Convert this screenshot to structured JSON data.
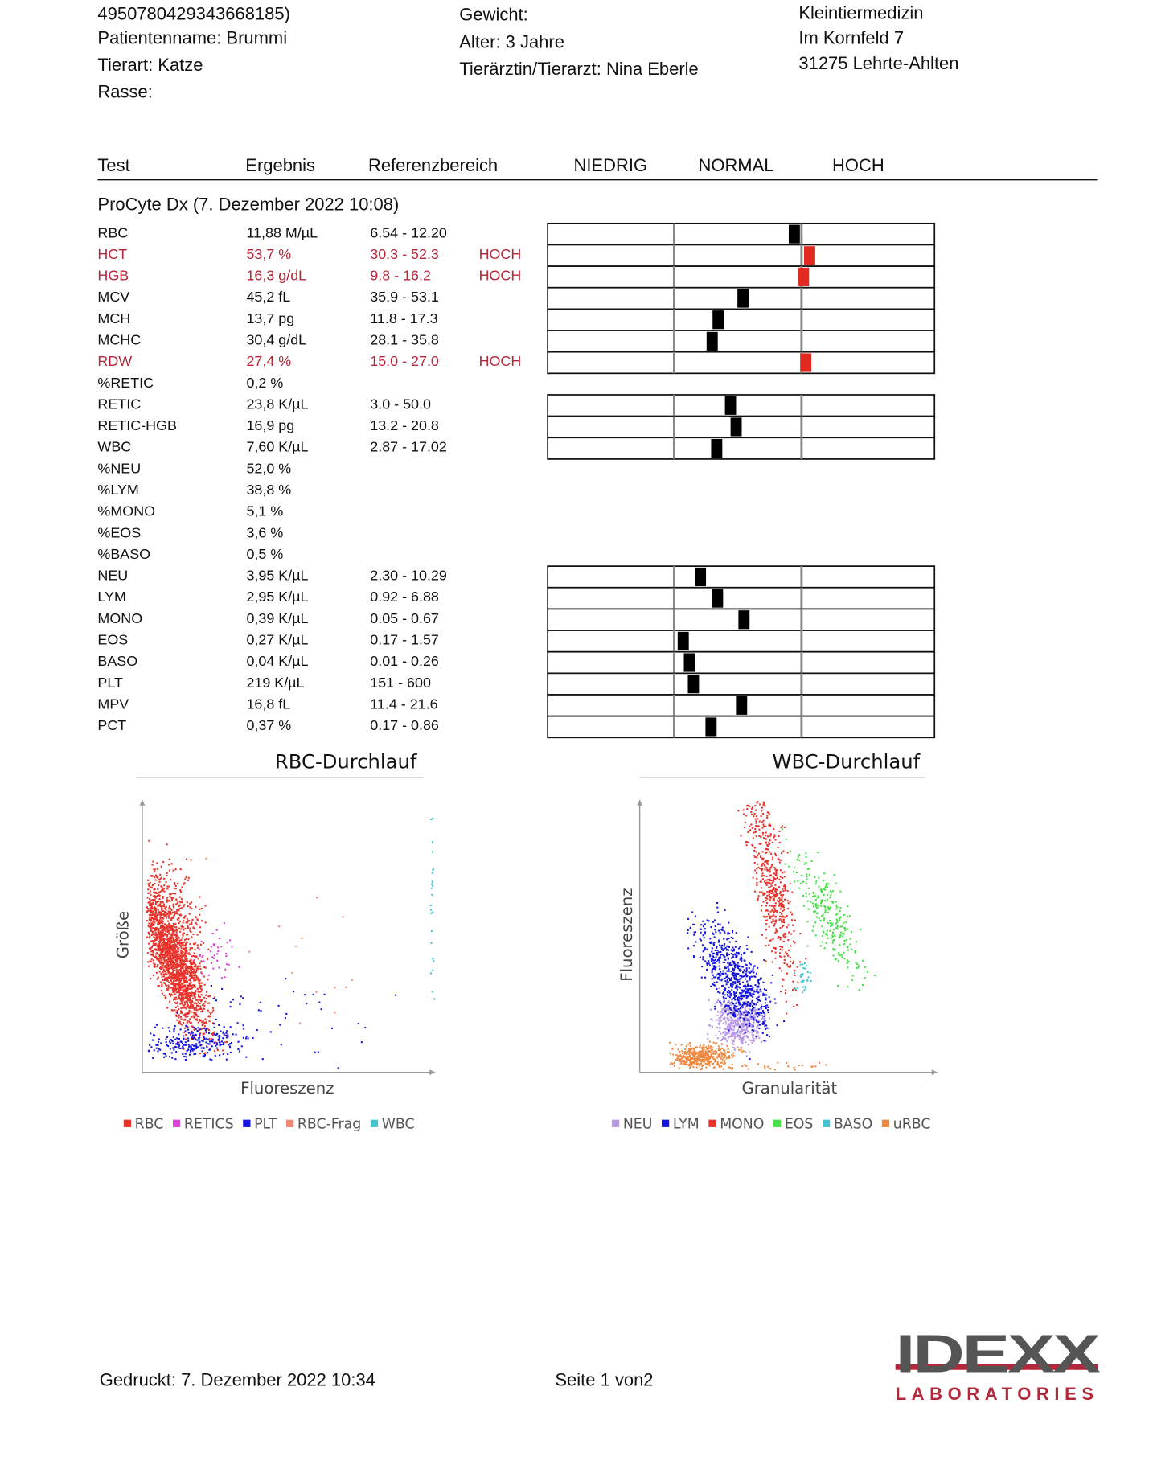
{
  "header": {
    "left": [
      "4950780429343668185)",
      "Patientenname: Brummi",
      "Tierart: Katze",
      "Rasse:"
    ],
    "middle": [
      "Gewicht:",
      "Alter: 3 Jahre",
      "Tierärztin/Tierarzt: Nina Eberle"
    ],
    "right": [
      "Kleintiermedizin",
      "Im Kornfeld 7",
      "31275 Lehrte-Ahlten"
    ]
  },
  "table": {
    "columns": [
      "Test",
      "Ergebnis",
      "Referenzbereich",
      "NIEDRIG",
      "NORMAL",
      "HOCH"
    ],
    "section": "ProCyte Dx (7. Dezember 2022 10:08)",
    "rows": [
      {
        "test": "RBC",
        "result": "11,88 M/µL",
        "range": "6.54 - 12.20"
      },
      {
        "test": "HCT",
        "result": "53,7 %",
        "range": "30.3 - 52.3",
        "flag": "HOCH"
      },
      {
        "test": "HGB",
        "result": "16,3 g/dL",
        "range": "9.8 - 16.2",
        "flag": "HOCH"
      },
      {
        "test": "MCV",
        "result": "45,2 fL",
        "range": "35.9 - 53.1"
      },
      {
        "test": "MCH",
        "result": "13,7 pg",
        "range": "11.8 - 17.3"
      },
      {
        "test": "MCHC",
        "result": "30,4 g/dL",
        "range": "28.1 - 35.8"
      },
      {
        "test": "RDW",
        "result": "27,4 %",
        "range": "15.0 - 27.0",
        "flag": "HOCH"
      },
      {
        "test": "%RETIC",
        "result": "0,2 %"
      },
      {
        "test": "RETIC",
        "result": "23,8 K/µL",
        "range": "3.0 - 50.0"
      },
      {
        "test": "RETIC-HGB",
        "result": "16,9 pg",
        "range": "13.2 - 20.8"
      },
      {
        "test": "WBC",
        "result": "7,60 K/µL",
        "range": "2.87 - 17.02"
      },
      {
        "test": "%NEU",
        "result": "52,0 %"
      },
      {
        "test": "%LYM",
        "result": "38,8 %"
      },
      {
        "test": "%MONO",
        "result": "5,1 %"
      },
      {
        "test": "%EOS",
        "result": "3,6 %"
      },
      {
        "test": "%BASO",
        "result": "0,5 %"
      },
      {
        "test": "NEU",
        "result": "3,95 K/µL",
        "range": "2.30 - 10.29"
      },
      {
        "test": "LYM",
        "result": "2,95 K/µL",
        "range": "0.92 - 6.88"
      },
      {
        "test": "MONO",
        "result": "0,39 K/µL",
        "range": "0.05 - 0.67"
      },
      {
        "test": "EOS",
        "result": "0,27 K/µL",
        "range": "0.17 - 1.57"
      },
      {
        "test": "BASO",
        "result": "0,04 K/µL",
        "range": "0.01 - 0.26"
      },
      {
        "test": "PLT",
        "result": "219 K/µL",
        "range": "151 - 600"
      },
      {
        "test": "MPV",
        "result": "16,8 fL",
        "range": "11.4 - 21.6"
      },
      {
        "test": "PCT",
        "result": "0,37 %",
        "range": "0.17 - 0.86"
      }
    ]
  },
  "plots": [
    {
      "title": "RBC-Durchlauf",
      "ylabel": "Größe",
      "xlabel": "Fluoreszenz",
      "legend": [
        {
          "name": "RBC",
          "color": "#e8322a"
        },
        {
          "name": "RETICS",
          "color": "#e040e0"
        },
        {
          "name": "PLT",
          "color": "#1414e0"
        },
        {
          "name": "RBC-Frag",
          "color": "#f08878"
        },
        {
          "name": "WBC",
          "color": "#40c4d0"
        }
      ]
    },
    {
      "title": "WBC-Durchlauf",
      "ylabel": "Fluoreszenz",
      "xlabel": "Granularität",
      "legend": [
        {
          "name": "NEU",
          "color": "#b898e4"
        },
        {
          "name": "LYM",
          "color": "#1414e0"
        },
        {
          "name": "MONO",
          "color": "#e8322a"
        },
        {
          "name": "EOS",
          "color": "#44e044"
        },
        {
          "name": "BASO",
          "color": "#40c4d0"
        },
        {
          "name": "uRBC",
          "color": "#f08840"
        }
      ]
    }
  ],
  "footer": {
    "printed": "Gedruckt: 7. Dezember 2022 10:34",
    "page": "Seite 1 von2"
  },
  "logo": {
    "name": "IDEXX",
    "sub": "LABORATORIES"
  }
}
